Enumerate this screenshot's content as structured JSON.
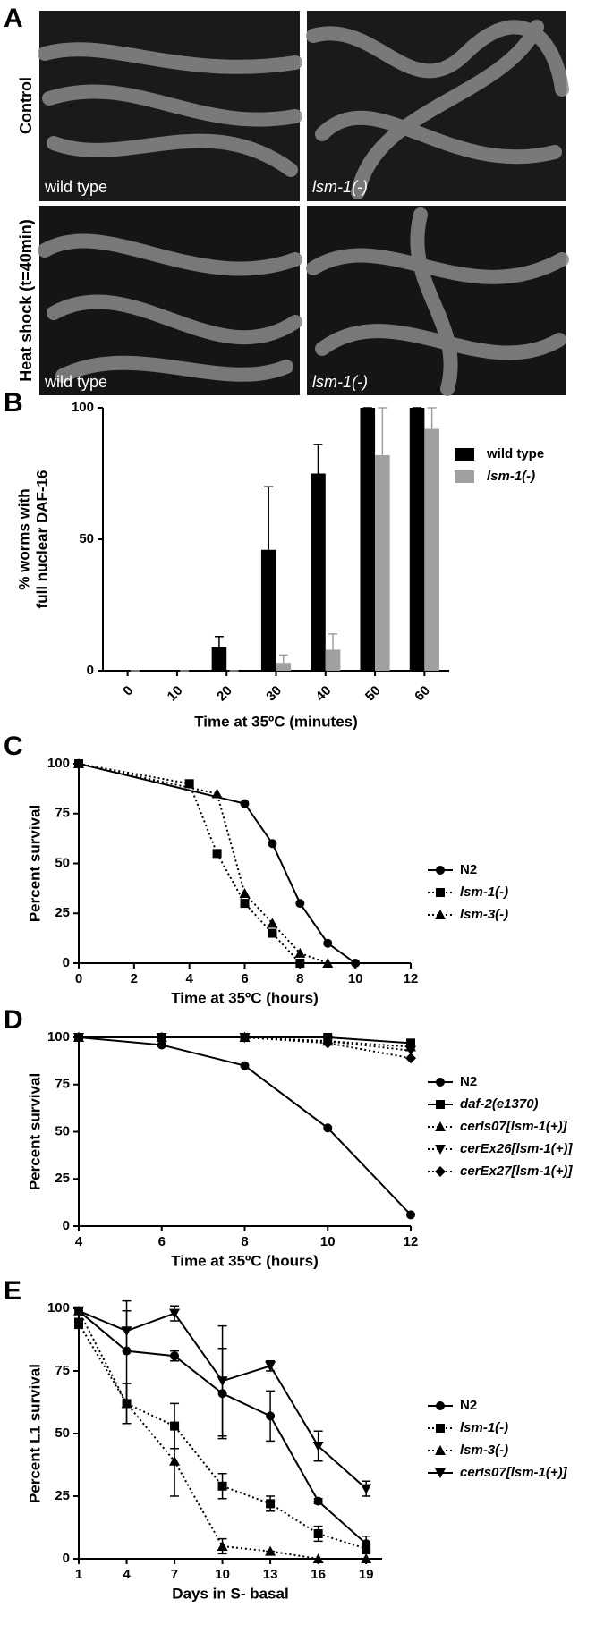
{
  "figure_panel": {
    "label": "A",
    "rows": [
      {
        "label": "Control",
        "images": [
          {
            "caption": "wild type"
          },
          {
            "caption": "lsm-1(-)"
          }
        ]
      },
      {
        "label": "Heat shock (t=40min)",
        "images": [
          {
            "caption": "wild type"
          },
          {
            "caption": "lsm-1(-)"
          }
        ]
      }
    ]
  },
  "chart_data": [
    {
      "panel": "B",
      "type": "bar",
      "ylabel": [
        "% worms with",
        "full nuclear DAF-16"
      ],
      "xlabel": "Time at 35ºC (minutes)",
      "categories": [
        0,
        10,
        20,
        30,
        40,
        50,
        60
      ],
      "ylim": [
        0,
        100
      ],
      "yticks": [
        0,
        50,
        100
      ],
      "series": [
        {
          "name": "wild type",
          "color": "#000000",
          "italic": false,
          "values": [
            0,
            0,
            9,
            46,
            75,
            100,
            100
          ],
          "errors": [
            0,
            0,
            4,
            24,
            11,
            0,
            0
          ]
        },
        {
          "name": "lsm-1(-)",
          "color": "#a0a0a0",
          "italic": true,
          "values": [
            0,
            0,
            0,
            3,
            8,
            82,
            92
          ],
          "errors": [
            0,
            0,
            0,
            3,
            6,
            18,
            8
          ]
        }
      ]
    },
    {
      "panel": "C",
      "type": "line",
      "ylabel": [
        "Percent survival"
      ],
      "xlabel": "Time at 35ºC (hours)",
      "xlim": [
        0,
        12
      ],
      "xticks": [
        0,
        2,
        4,
        6,
        8,
        10,
        12
      ],
      "ylim": [
        0,
        100
      ],
      "yticks": [
        0,
        25,
        50,
        75,
        100
      ],
      "series": [
        {
          "name": "N2",
          "color": "#000000",
          "italic": false,
          "dash": false,
          "marker": "circle",
          "x": [
            0,
            6,
            7,
            8,
            9,
            10
          ],
          "values": [
            100,
            80,
            60,
            30,
            10,
            0
          ]
        },
        {
          "name": "lsm-1(-)",
          "color": "#000000",
          "italic": true,
          "dash": true,
          "marker": "square",
          "x": [
            0,
            4,
            5,
            6,
            7,
            8
          ],
          "values": [
            100,
            90,
            55,
            30,
            15,
            0
          ]
        },
        {
          "name": "lsm-3(-)",
          "color": "#000000",
          "italic": true,
          "dash": true,
          "marker": "triangle",
          "x": [
            0,
            5,
            6,
            7,
            8,
            9
          ],
          "values": [
            100,
            85,
            35,
            20,
            5,
            0
          ]
        }
      ]
    },
    {
      "panel": "D",
      "type": "line",
      "ylabel": [
        "Percent survival"
      ],
      "xlabel": "Time at 35ºC (hours)",
      "xlim": [
        4,
        12
      ],
      "xticks": [
        4,
        6,
        8,
        10,
        12
      ],
      "ylim": [
        0,
        100
      ],
      "yticks": [
        0,
        25,
        50,
        75,
        100
      ],
      "x": [
        4,
        6,
        8,
        10,
        12
      ],
      "series": [
        {
          "name": "N2",
          "color": "#000000",
          "italic": false,
          "dash": false,
          "marker": "circle",
          "values": [
            100,
            96,
            85,
            52,
            6
          ]
        },
        {
          "name": "daf-2(e1370)",
          "color": "#000000",
          "italic": true,
          "dash": false,
          "marker": "square",
          "values": [
            100,
            100,
            100,
            100,
            97
          ]
        },
        {
          "name": "cerIs07[lsm-1(+)]",
          "color": "#000000",
          "italic": true,
          "dash": true,
          "marker": "triangle",
          "values": [
            100,
            100,
            100,
            98,
            95
          ]
        },
        {
          "name": "cerEx26[lsm-1(+)]",
          "color": "#000000",
          "italic": true,
          "dash": true,
          "marker": "triangle-down",
          "values": [
            100,
            100,
            100,
            98,
            93
          ]
        },
        {
          "name": "cerEx27[lsm-1(+)]",
          "color": "#000000",
          "italic": true,
          "dash": true,
          "marker": "diamond",
          "values": [
            100,
            100,
            100,
            97,
            89
          ]
        }
      ]
    },
    {
      "panel": "E",
      "type": "line",
      "ylabel": [
        "Percent L1 survival"
      ],
      "xlabel": "Days in S- basal",
      "xlim": [
        1,
        20
      ],
      "xticks": [
        1,
        4,
        7,
        10,
        13,
        16,
        19
      ],
      "ylim": [
        0,
        100
      ],
      "yticks": [
        0,
        25,
        50,
        75,
        100
      ],
      "x": [
        1,
        4,
        7,
        10,
        13,
        16,
        19
      ],
      "series": [
        {
          "name": "N2",
          "color": "#000000",
          "italic": false,
          "dash": false,
          "marker": "circle",
          "values": [
            99,
            83,
            81,
            66,
            57,
            23,
            6
          ],
          "errors": [
            1,
            20,
            2,
            18,
            10,
            1,
            3
          ]
        },
        {
          "name": "lsm-1(-)",
          "color": "#000000",
          "italic": true,
          "dash": true,
          "marker": "square",
          "values": [
            94,
            62,
            53,
            29,
            22,
            10,
            4
          ],
          "errors": [
            2,
            8,
            9,
            5,
            3,
            3,
            2
          ]
        },
        {
          "name": "lsm-3(-)",
          "color": "#000000",
          "italic": true,
          "dash": true,
          "marker": "triangle",
          "values": [
            99,
            62,
            39,
            5,
            3,
            0,
            0
          ],
          "errors": [
            1,
            8,
            14,
            3,
            0,
            0,
            0
          ]
        },
        {
          "name": "cerIs07[lsm-1(+)]",
          "color": "#000000",
          "italic": true,
          "dash": false,
          "marker": "triangle-down",
          "values": [
            99,
            91,
            98,
            71,
            77,
            45,
            28
          ],
          "errors": [
            1,
            8,
            3,
            22,
            2,
            6,
            3
          ]
        }
      ]
    }
  ]
}
